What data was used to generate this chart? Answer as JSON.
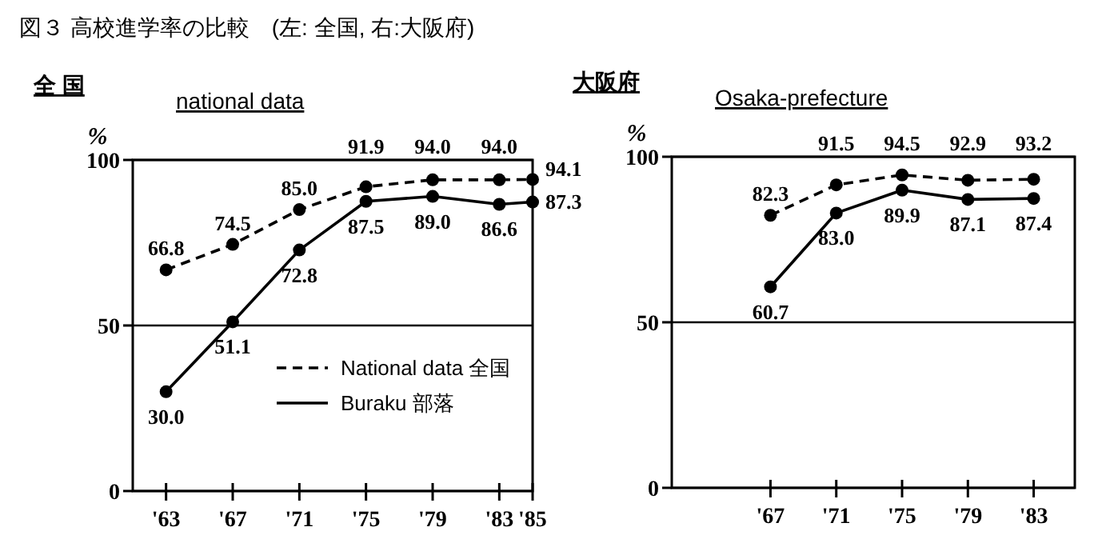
{
  "chart_data": [
    {
      "type": "line",
      "title": "全 国",
      "subtitle": "national data",
      "ylabel": "%",
      "annotations": [
        "図３  高校進学率の比較　(左:  全国,  右:大阪府)"
      ],
      "xlim": [
        1961,
        1985
      ],
      "xticks": [
        {
          "value": 1963,
          "label": "'63"
        },
        {
          "value": 1967,
          "label": "'67"
        },
        {
          "value": 1971,
          "label": "'71"
        },
        {
          "value": 1975,
          "label": "'75"
        },
        {
          "value": 1979,
          "label": "'79"
        },
        {
          "value": 1983,
          "label": "'83"
        },
        {
          "value": 1985,
          "label": "'85"
        }
      ],
      "ylim": [
        0,
        100
      ],
      "yticks": [
        0,
        50,
        100
      ],
      "grid": "y",
      "legend": "right",
      "marker": "circle",
      "x": [
        1963,
        1967,
        1971,
        1975,
        1979,
        1983,
        1985
      ],
      "series": [
        {
          "name": "National data 全国",
          "color": "#000000",
          "line_style": "dashed",
          "values": [
            66.8,
            74.5,
            85.0,
            91.9,
            94.0,
            94.0,
            94.1
          ],
          "value_labels": [
            "66.8",
            "74.5",
            "85.0",
            "91.9",
            "94.0",
            "94.0",
            "94.1"
          ]
        },
        {
          "name": "Buraku 部落",
          "color": "#000000",
          "line_style": "solid",
          "values": [
            30.0,
            51.1,
            72.8,
            87.5,
            89.0,
            86.6,
            87.3
          ],
          "value_labels": [
            "30.0",
            "51.1",
            "72.8",
            "87.5",
            "89.0",
            "86.6",
            "87.3"
          ]
        }
      ]
    },
    {
      "type": "line",
      "title": "大阪府",
      "subtitle": "Osaka-prefecture",
      "ylabel": "%",
      "xlim": [
        1961,
        1985.5
      ],
      "xticks": [
        {
          "value": 1967,
          "label": "'67"
        },
        {
          "value": 1971,
          "label": "'71"
        },
        {
          "value": 1975,
          "label": "'75"
        },
        {
          "value": 1979,
          "label": "'79"
        },
        {
          "value": 1983,
          "label": "'83"
        }
      ],
      "ylim": [
        0,
        100
      ],
      "yticks": [
        0,
        50,
        100
      ],
      "grid": "y",
      "marker": "circle",
      "x": [
        1967,
        1971,
        1975,
        1979,
        1983
      ],
      "series": [
        {
          "color": "#000000",
          "line_style": "dashed",
          "values": [
            82.3,
            91.5,
            94.5,
            92.9,
            93.2
          ],
          "value_labels": [
            "82.3",
            "91.5",
            "94.5",
            "92.9",
            "93.2"
          ]
        },
        {
          "color": "#000000",
          "line_style": "solid",
          "values": [
            60.7,
            83.0,
            89.9,
            87.1,
            87.4
          ],
          "value_labels": [
            "60.7",
            "83.0",
            "89.9",
            "87.1",
            "87.4"
          ]
        }
      ]
    }
  ]
}
